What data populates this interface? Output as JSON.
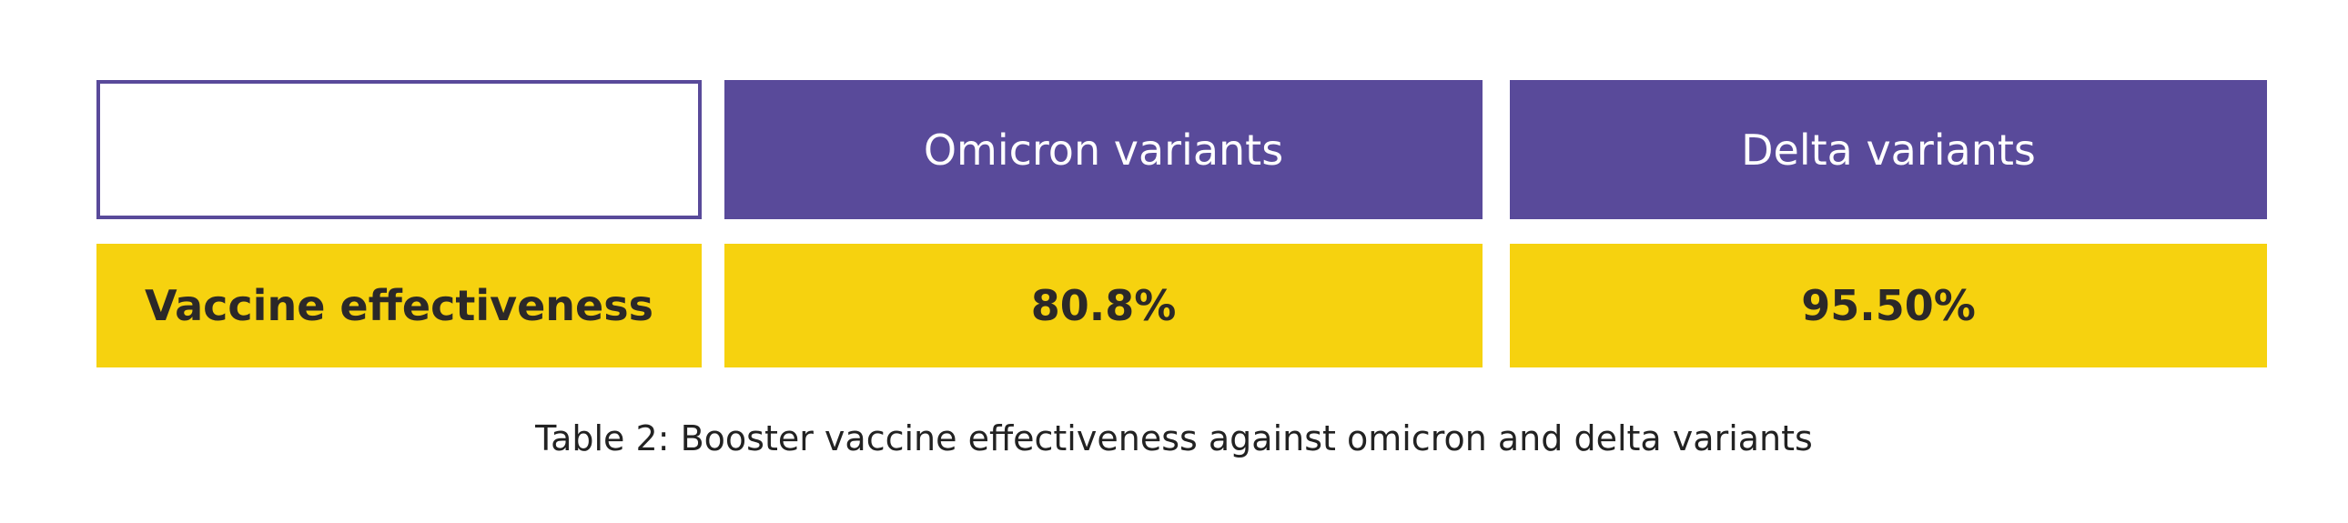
{
  "table": {
    "columns": [
      "Omicron variants",
      "Delta variants"
    ],
    "rows": [
      [
        "Vaccine effectiveness",
        "80.8%",
        "95.50%"
      ]
    ]
  },
  "caption": "Table 2: Booster vaccine effectiveness against omicron and delta variants"
}
